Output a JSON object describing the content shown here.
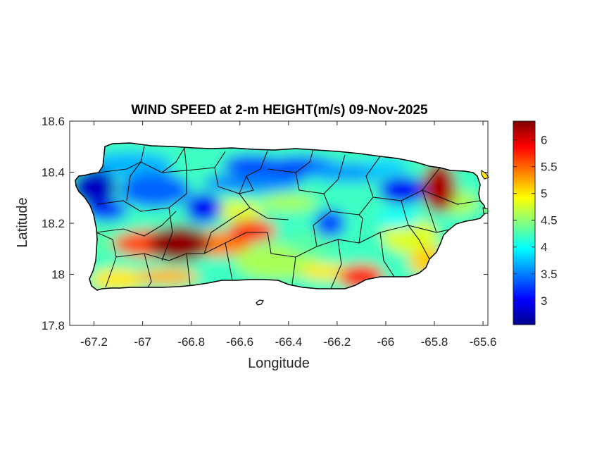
{
  "chart_data": {
    "type": "heatmap",
    "title": "WIND SPEED at 2-m HEIGHT(m/s) 09-Nov-2025",
    "xlabel": "Longitude",
    "ylabel": "Latitude",
    "xlim": [
      -67.3,
      -65.58
    ],
    "ylim": [
      17.8,
      18.6
    ],
    "xticks": [
      -67.2,
      -67,
      -66.8,
      -66.6,
      -66.4,
      -66.2,
      -66,
      -65.8,
      -65.6
    ],
    "xtick_labels": [
      "-67.2",
      "-67",
      "-66.8",
      "-66.6",
      "-66.4",
      "-66.2",
      "-66",
      "-65.8",
      "-65.6"
    ],
    "yticks": [
      17.8,
      18,
      18.2,
      18.4,
      18.6
    ],
    "ytick_labels": [
      "17.8",
      "18",
      "18.2",
      "18.4",
      "18.6"
    ],
    "colorbar": {
      "colormap": "jet",
      "range": [
        2.55,
        6.35
      ],
      "ticks": [
        3,
        3.5,
        4,
        4.5,
        5,
        5.5,
        6
      ],
      "tick_labels": [
        "3",
        "3.5",
        "4",
        "4.5",
        "5",
        "5.5",
        "6"
      ]
    },
    "field_features": [
      {
        "name": "west-tip-low",
        "lon": -67.2,
        "lat": 18.34,
        "value": 2.8
      },
      {
        "name": "central-north-low",
        "lon": -66.75,
        "lat": 18.26,
        "value": 3.0
      },
      {
        "name": "north-coast-low",
        "lon": -66.55,
        "lat": 18.43,
        "value": 3.3
      },
      {
        "name": "northeast-low",
        "lon": -65.93,
        "lat": 18.33,
        "value": 3.0
      },
      {
        "name": "east-central-low",
        "lon": -66.23,
        "lat": 18.2,
        "value": 3.3
      },
      {
        "name": "southwest-high",
        "lon": -66.85,
        "lat": 18.12,
        "value": 6.3
      },
      {
        "name": "south-central-high",
        "lon": -66.55,
        "lat": 18.17,
        "value": 5.7
      },
      {
        "name": "northeast-corner-high",
        "lon": -65.78,
        "lat": 18.34,
        "value": 6.2
      },
      {
        "name": "southeast-high",
        "lon": -66.1,
        "lat": 17.99,
        "value": 5.8
      }
    ],
    "grid": false
  }
}
